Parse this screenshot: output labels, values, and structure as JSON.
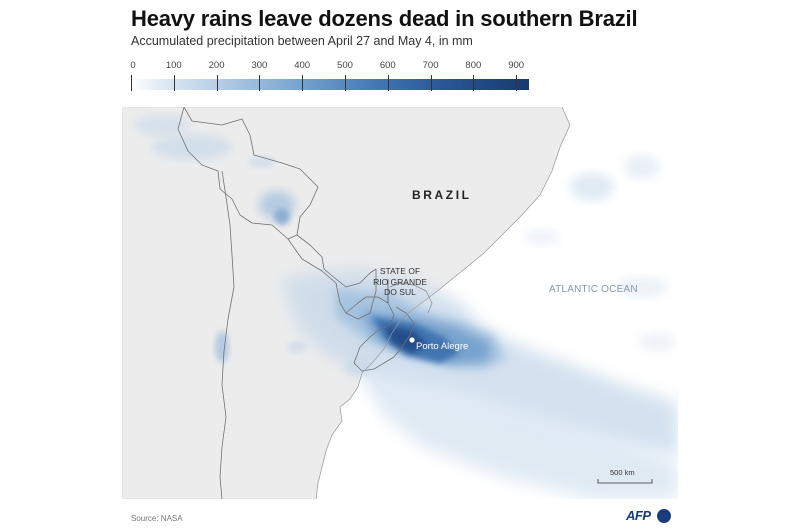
{
  "title": "Heavy rains leave dozens dead in southern Brazil",
  "subtitle": "Accumulated precipitation between April 27 and May 4, in mm",
  "legend": {
    "ticks": [
      "0",
      "100",
      "200",
      "300",
      "400",
      "500",
      "600",
      "700",
      "800",
      "900"
    ],
    "min": 0,
    "max": 930,
    "colors": [
      "#ffffff",
      "#dfe9f4",
      "#9dbddd",
      "#5689bf",
      "#2a5896",
      "#173a6c"
    ]
  },
  "map": {
    "country_label": "BRAZIL",
    "ocean_label": "ATLANTIC OCEAN",
    "state_label": "STATE OF\nRIO GRANDE\nDO SUL",
    "city_label": "Porto Alegre",
    "scale_label": "500 km",
    "land_color": "#ececec",
    "sea_color": "#ffffff",
    "border_color": "#707070"
  },
  "source": "Source: NASA",
  "logo_text": "AFP"
}
